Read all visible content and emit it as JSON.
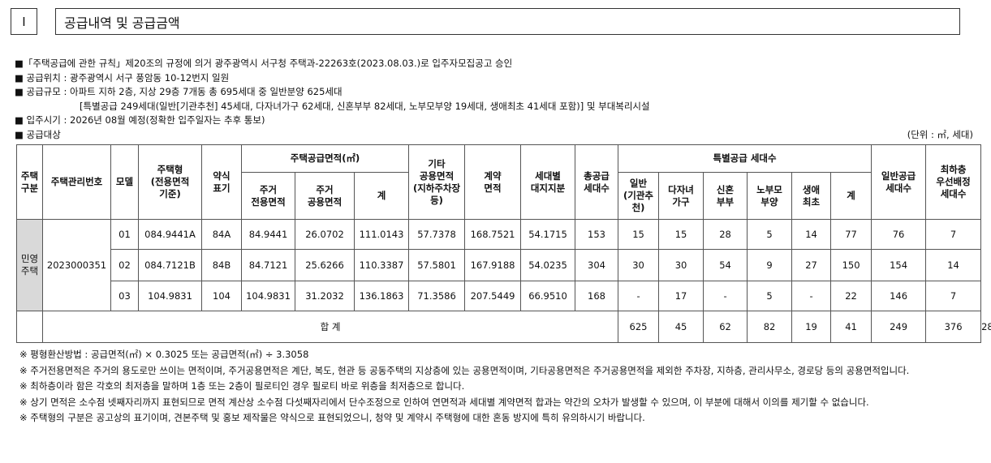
{
  "header": {
    "number": "Ⅰ",
    "title": "공급내역 및 공급금액"
  },
  "notes": [
    "■「주택공급에 관한 규칙」제20조의 규정에 의거 광주광역시 서구청 주택과-22263호(2023.08.03.)로 입주자모집공고 승인",
    "■ 공급위치 : 광주광역시 서구 풍암동 10-12번지 일원",
    "■ 공급규모 : 아파트 지하 2층, 지상 29층 7개동 총 695세대 중 일반분양 625세대",
    "[특별공급 249세대(일반[기관추천] 45세대, 다자녀가구 62세대, 신혼부부 82세대, 노부모부양 19세대, 생애최초 41세대 포함)] 및 부대복리시설",
    "■ 입주시기 : 2026년 08월 예정(정확한 입주일자는 추후 통보)",
    "■ 공급대상"
  ],
  "unit": "(단위 : ㎡, 세대)",
  "table": {
    "header_top": [
      "주택\n구분",
      "주택관리번호",
      "모델",
      "주택형\n(전용면적\n기준)",
      "약식\n표기",
      "주택공급면적(㎡)",
      "기타\n공용면적\n(지하주차장\n등)",
      "계약\n면적",
      "세대별\n대지지분",
      "총공급\n세대수",
      "특별공급 세대수",
      "일반공급\n세대수",
      "최하층\n우선배정\n세대수"
    ],
    "header_sub": [
      "주거\n전용면적",
      "주거\n공용면적",
      "계",
      "일반\n(기관추천)",
      "다자녀\n가구",
      "신혼\n부부",
      "노부모\n부양",
      "생애\n최초",
      "계"
    ],
    "group": "민영\n주택",
    "code": "2023000351",
    "rows": [
      [
        "01",
        "084.9441A",
        "84A",
        "84.9441",
        "26.0702",
        "111.0143",
        "57.7378",
        "168.7521",
        "54.1715",
        "153",
        "15",
        "15",
        "28",
        "5",
        "14",
        "77",
        "76",
        "7"
      ],
      [
        "02",
        "084.7121B",
        "84B",
        "84.7121",
        "25.6266",
        "110.3387",
        "57.5801",
        "167.9188",
        "54.0235",
        "304",
        "30",
        "30",
        "54",
        "9",
        "27",
        "150",
        "154",
        "14"
      ],
      [
        "03",
        "104.9831",
        "104",
        "104.9831",
        "31.2032",
        "136.1863",
        "71.3586",
        "207.5449",
        "66.9510",
        "168",
        "-",
        "17",
        "-",
        "5",
        "-",
        "22",
        "146",
        "7"
      ]
    ],
    "total_label": "합 계",
    "total": [
      "625",
      "45",
      "62",
      "82",
      "19",
      "41",
      "249",
      "376",
      "28"
    ]
  },
  "footnotes": [
    "※ 평형환산방법 : 공급면적(㎡) × 0.3025 또는 공급면적(㎡) ÷ 3.3058",
    "※ 주거전용면적은 주거의 용도로만 쓰이는 면적이며, 주거공용면적은 계단, 복도, 현관 등 공동주택의 지상층에 있는 공용면적이며, 기타공용면적은 주거공용면적을 제외한 주차장, 지하층, 관리사무소, 경로당 등의 공용면적입니다.",
    "※ 최하층이라 함은 각호의 최저층을 말하며 1층 또는 2층이 필로티인 경우 필로티 바로 위층을 최저층으로 합니다.",
    "※ 상기 면적은 소수점 넷째자리까지 표현되므로 면적 계산상 소수점 다섯째자리에서 단수조정으로 인하여 연면적과 세대별 계약면적 합과는 약간의 오차가 발생할 수 있으며, 이 부분에 대해서 이의를 제기할 수 없습니다.",
    "※ 주택형의 구분은 공고상의 표기이며, 견본주택 및 홍보 제작물은 약식으로 표현되었으니, 청약 및 계약시 주택형에 대한 혼동 방지에 특히 유의하시기 바랍니다."
  ]
}
